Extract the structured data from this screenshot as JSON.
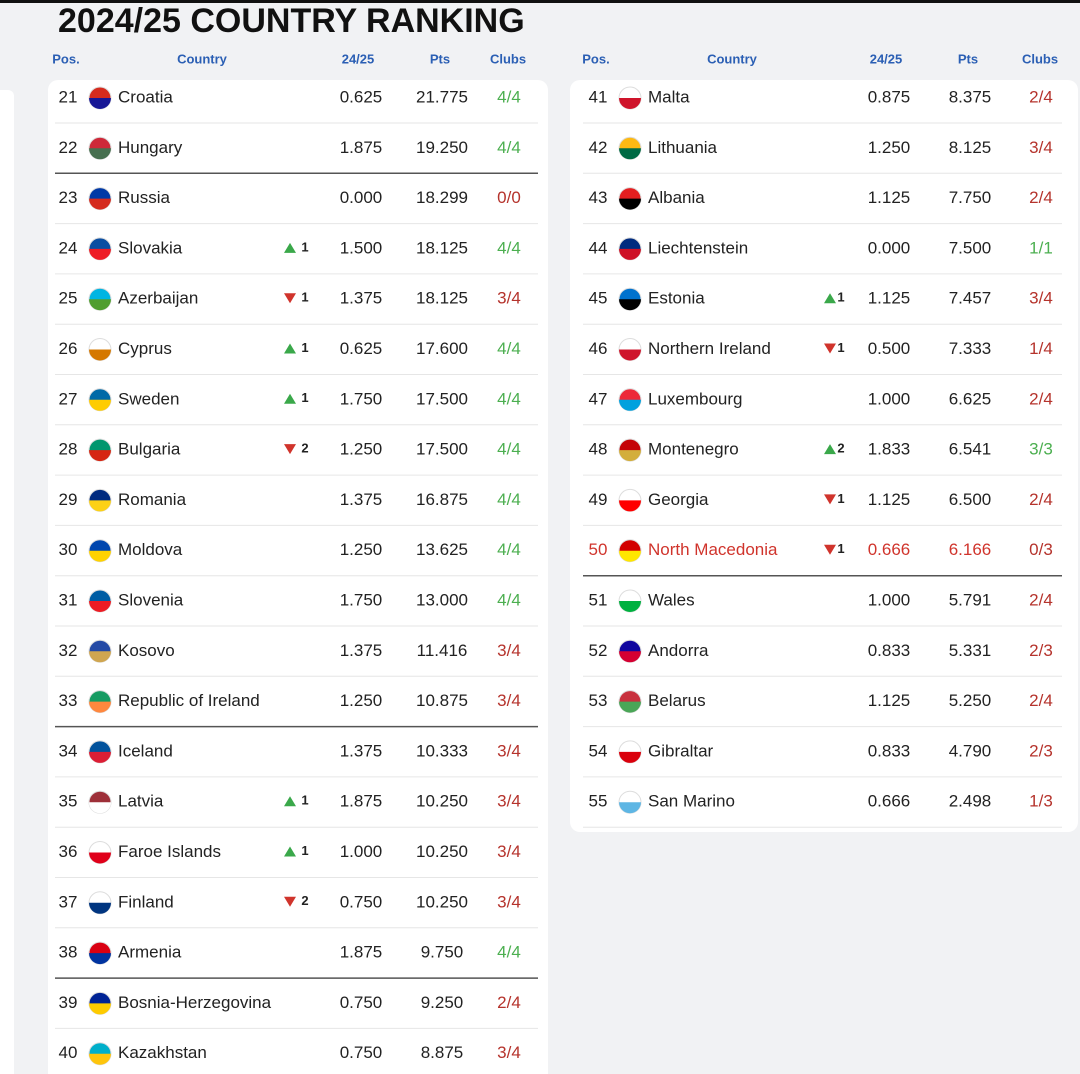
{
  "title": "2024/25 COUNTRY RANKING",
  "tables": [
    {
      "header": {
        "pos": "Pos.",
        "country": "Country",
        "season": "24/25",
        "pts": "Pts",
        "clubs": "Clubs"
      },
      "rows": [
        {
          "pos": "21",
          "country": "Croatia",
          "season": "0.625",
          "pts": "21.775",
          "clubs": "4/4",
          "flag": [
            "#d52b1e",
            "#171796"
          ]
        },
        {
          "pos": "22",
          "country": "Hungary",
          "season": "1.875",
          "pts": "19.250",
          "clubs": "4/4",
          "flag": [
            "#ce2939",
            "#477050"
          ],
          "separator": true
        },
        {
          "pos": "23",
          "country": "Russia",
          "season": "0.000",
          "pts": "18.299",
          "clubs": "0/0",
          "flag": [
            "#0039a6",
            "#d52b1e"
          ]
        },
        {
          "pos": "24",
          "country": "Slovakia",
          "dir": "up",
          "move": "1",
          "season": "1.500",
          "pts": "18.125",
          "clubs": "4/4",
          "flag": [
            "#0b4ea2",
            "#ee1c25"
          ]
        },
        {
          "pos": "25",
          "country": "Azerbaijan",
          "dir": "down",
          "move": "1",
          "season": "1.375",
          "pts": "18.125",
          "clubs": "3/4",
          "flag": [
            "#00b5e2",
            "#509e2f"
          ]
        },
        {
          "pos": "26",
          "country": "Cyprus",
          "dir": "up",
          "move": "1",
          "season": "0.625",
          "pts": "17.600",
          "clubs": "4/4",
          "flag": [
            "#ffffff",
            "#d57800"
          ]
        },
        {
          "pos": "27",
          "country": "Sweden",
          "dir": "up",
          "move": "1",
          "season": "1.750",
          "pts": "17.500",
          "clubs": "4/4",
          "flag": [
            "#006aa7",
            "#fecc00"
          ]
        },
        {
          "pos": "28",
          "country": "Bulgaria",
          "dir": "down",
          "move": "2",
          "season": "1.250",
          "pts": "17.500",
          "clubs": "4/4",
          "flag": [
            "#00966e",
            "#d62612"
          ]
        },
        {
          "pos": "29",
          "country": "Romania",
          "season": "1.375",
          "pts": "16.875",
          "clubs": "4/4",
          "flag": [
            "#002b7f",
            "#fcd116"
          ]
        },
        {
          "pos": "30",
          "country": "Moldova",
          "season": "1.250",
          "pts": "13.625",
          "clubs": "4/4",
          "flag": [
            "#0046ae",
            "#ffd200"
          ]
        },
        {
          "pos": "31",
          "country": "Slovenia",
          "season": "1.750",
          "pts": "13.000",
          "clubs": "4/4",
          "flag": [
            "#005da4",
            "#ed1c24"
          ]
        },
        {
          "pos": "32",
          "country": "Kosovo",
          "season": "1.375",
          "pts": "11.416",
          "clubs": "3/4",
          "flag": [
            "#244aa5",
            "#d0a650"
          ]
        },
        {
          "pos": "33",
          "country": "Republic of Ireland",
          "season": "1.250",
          "pts": "10.875",
          "clubs": "3/4",
          "flag": [
            "#169b62",
            "#ff883e"
          ],
          "separator": true
        },
        {
          "pos": "34",
          "country": "Iceland",
          "season": "1.375",
          "pts": "10.333",
          "clubs": "3/4",
          "flag": [
            "#02529c",
            "#dc1e35"
          ]
        },
        {
          "pos": "35",
          "country": "Latvia",
          "dir": "up",
          "move": "1",
          "season": "1.875",
          "pts": "10.250",
          "clubs": "3/4",
          "flag": [
            "#9e3039",
            "#ffffff"
          ]
        },
        {
          "pos": "36",
          "country": "Faroe Islands",
          "dir": "up",
          "move": "1",
          "season": "1.000",
          "pts": "10.250",
          "clubs": "3/4",
          "flag": [
            "#ffffff",
            "#e0001a"
          ]
        },
        {
          "pos": "37",
          "country": "Finland",
          "dir": "down",
          "move": "2",
          "season": "0.750",
          "pts": "10.250",
          "clubs": "3/4",
          "flag": [
            "#ffffff",
            "#003580"
          ]
        },
        {
          "pos": "38",
          "country": "Armenia",
          "season": "1.875",
          "pts": "9.750",
          "clubs": "4/4",
          "flag": [
            "#d90012",
            "#0033a0"
          ],
          "separator": true
        },
        {
          "pos": "39",
          "country": "Bosnia-Herzegovina",
          "season": "0.750",
          "pts": "9.250",
          "clubs": "2/4",
          "flag": [
            "#002395",
            "#fecb00"
          ]
        },
        {
          "pos": "40",
          "country": "Kazakhstan",
          "season": "0.750",
          "pts": "8.875",
          "clubs": "3/4",
          "flag": [
            "#00afca",
            "#fec50c"
          ]
        }
      ]
    },
    {
      "header": {
        "pos": "Pos.",
        "country": "Country",
        "season": "24/25",
        "pts": "Pts",
        "clubs": "Clubs"
      },
      "rows": [
        {
          "pos": "41",
          "country": "Malta",
          "season": "0.875",
          "pts": "8.375",
          "clubs": "2/4",
          "flag": [
            "#ffffff",
            "#cf142b"
          ]
        },
        {
          "pos": "42",
          "country": "Lithuania",
          "season": "1.250",
          "pts": "8.125",
          "clubs": "3/4",
          "flag": [
            "#fdb913",
            "#006a44"
          ]
        },
        {
          "pos": "43",
          "country": "Albania",
          "season": "1.125",
          "pts": "7.750",
          "clubs": "2/4",
          "flag": [
            "#e41e20",
            "#000000"
          ]
        },
        {
          "pos": "44",
          "country": "Liechtenstein",
          "season": "0.000",
          "pts": "7.500",
          "clubs": "1/1",
          "flag": [
            "#002b7f",
            "#ce1126"
          ]
        },
        {
          "pos": "45",
          "country": "Estonia",
          "dir": "up",
          "move": "1",
          "season": "1.125",
          "pts": "7.457",
          "clubs": "3/4",
          "flag": [
            "#0072ce",
            "#000000"
          ]
        },
        {
          "pos": "46",
          "country": "Northern Ireland",
          "dir": "down",
          "move": "1",
          "season": "0.500",
          "pts": "7.333",
          "clubs": "1/4",
          "flag": [
            "#ffffff",
            "#cf142b"
          ]
        },
        {
          "pos": "47",
          "country": "Luxembourg",
          "season": "1.000",
          "pts": "6.625",
          "clubs": "2/4",
          "flag": [
            "#ed2939",
            "#00a1de"
          ]
        },
        {
          "pos": "48",
          "country": "Montenegro",
          "dir": "up",
          "move": "2",
          "season": "1.833",
          "pts": "6.541",
          "clubs": "3/3",
          "flag": [
            "#c40308",
            "#d3ae3b"
          ]
        },
        {
          "pos": "49",
          "country": "Georgia",
          "dir": "down",
          "move": "1",
          "season": "1.125",
          "pts": "6.500",
          "clubs": "2/4",
          "flag": [
            "#ffffff",
            "#ff0000"
          ]
        },
        {
          "pos": "50",
          "country": "North Macedonia",
          "dir": "down",
          "move": "1",
          "season": "0.666",
          "pts": "6.166",
          "clubs": "0/3",
          "flag": [
            "#d20000",
            "#ffe600"
          ],
          "separator": true,
          "highlight": true
        },
        {
          "pos": "51",
          "country": "Wales",
          "season": "1.000",
          "pts": "5.791",
          "clubs": "2/4",
          "flag": [
            "#ffffff",
            "#00b140"
          ]
        },
        {
          "pos": "52",
          "country": "Andorra",
          "season": "0.833",
          "pts": "5.331",
          "clubs": "2/3",
          "flag": [
            "#10069f",
            "#d50032"
          ]
        },
        {
          "pos": "53",
          "country": "Belarus",
          "season": "1.125",
          "pts": "5.250",
          "clubs": "2/4",
          "flag": [
            "#c8313e",
            "#4aa657"
          ]
        },
        {
          "pos": "54",
          "country": "Gibraltar",
          "season": "0.833",
          "pts": "4.790",
          "clubs": "2/3",
          "flag": [
            "#ffffff",
            "#da000c"
          ]
        },
        {
          "pos": "55",
          "country": "San Marino",
          "season": "0.666",
          "pts": "2.498",
          "clubs": "1/3",
          "flag": [
            "#ffffff",
            "#5eb6e4"
          ]
        }
      ]
    }
  ]
}
